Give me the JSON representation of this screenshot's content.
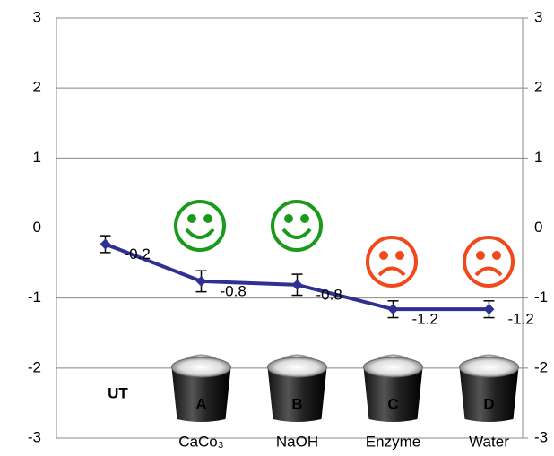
{
  "chart_data": {
    "type": "line",
    "categories": [
      "UT",
      "A",
      "B",
      "C",
      "D"
    ],
    "category_colors": [
      "#000000",
      "#ff0000",
      "#ff0000",
      "#1a9a1a",
      "#1a9a1a"
    ],
    "sublabels": [
      null,
      "CaCo₃",
      "NaOH",
      "Enzyme",
      "Water"
    ],
    "sublabel_colors": [
      null,
      "#ff0000",
      "#ff0000",
      "#1a9a1a",
      "#1a9a1a"
    ],
    "series": [
      {
        "name": null,
        "color": "#2e3192",
        "values": [
          -0.23,
          -0.76,
          -0.81,
          -1.16,
          -1.16
        ],
        "errors": [
          0.12,
          0.15,
          0.15,
          0.12,
          0.12
        ],
        "value_labels": [
          "-0.2",
          "-0.8",
          "-0.8",
          "-1.2",
          "-1.2"
        ]
      }
    ],
    "ylim": [
      -3,
      3
    ],
    "yticks": [
      -3,
      -2,
      -1,
      0,
      1,
      2,
      3
    ],
    "y2lim": [
      -3,
      3
    ],
    "y2ticks": [
      -3,
      -2,
      -1,
      0,
      1,
      2,
      3
    ],
    "grid": true
  }
}
